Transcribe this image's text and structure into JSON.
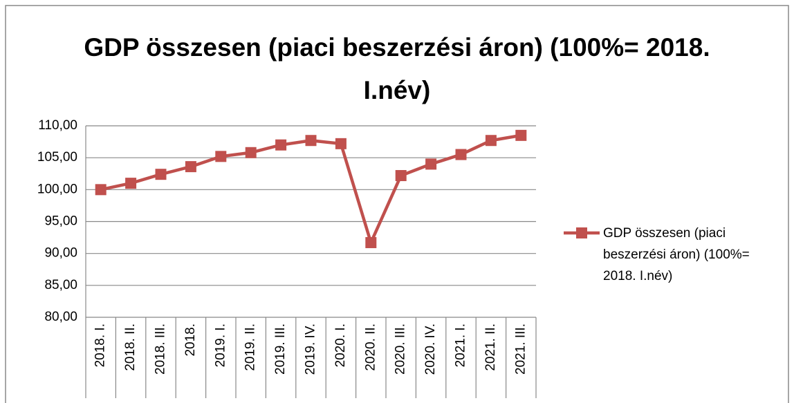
{
  "chart_data": {
    "type": "line",
    "title": "GDP összesen (piaci beszerzési áron) (100%= 2018. I.név)",
    "categories": [
      "2018. I.",
      "2018. II.",
      "2018. III.",
      "2018.",
      "2019. I.",
      "2019. II.",
      "2019. III.",
      "2019. IV.",
      "2020. I.",
      "2020. II.",
      "2020. III.",
      "2020. IV.",
      "2021. I.",
      "2021. II.",
      "2021. III."
    ],
    "series": [
      {
        "name": "GDP összesen (piaci beszerzési áron) (100%= 2018. I.név)",
        "color": "#c0504d",
        "values": [
          100.0,
          101.0,
          102.4,
          103.6,
          105.2,
          105.8,
          107.0,
          107.7,
          107.2,
          91.7,
          102.2,
          104.0,
          105.5,
          107.7,
          108.5
        ]
      }
    ],
    "ylim": [
      80,
      110
    ],
    "yticks": [
      {
        "value": 80,
        "label": "80,00"
      },
      {
        "value": 85,
        "label": "85,00"
      },
      {
        "value": 90,
        "label": "90,00"
      },
      {
        "value": 95,
        "label": "95,00"
      },
      {
        "value": 100,
        "label": "100,00"
      },
      {
        "value": 105,
        "label": "105,00"
      },
      {
        "value": 110,
        "label": "110,00"
      }
    ],
    "grid": true,
    "legend": "right"
  }
}
